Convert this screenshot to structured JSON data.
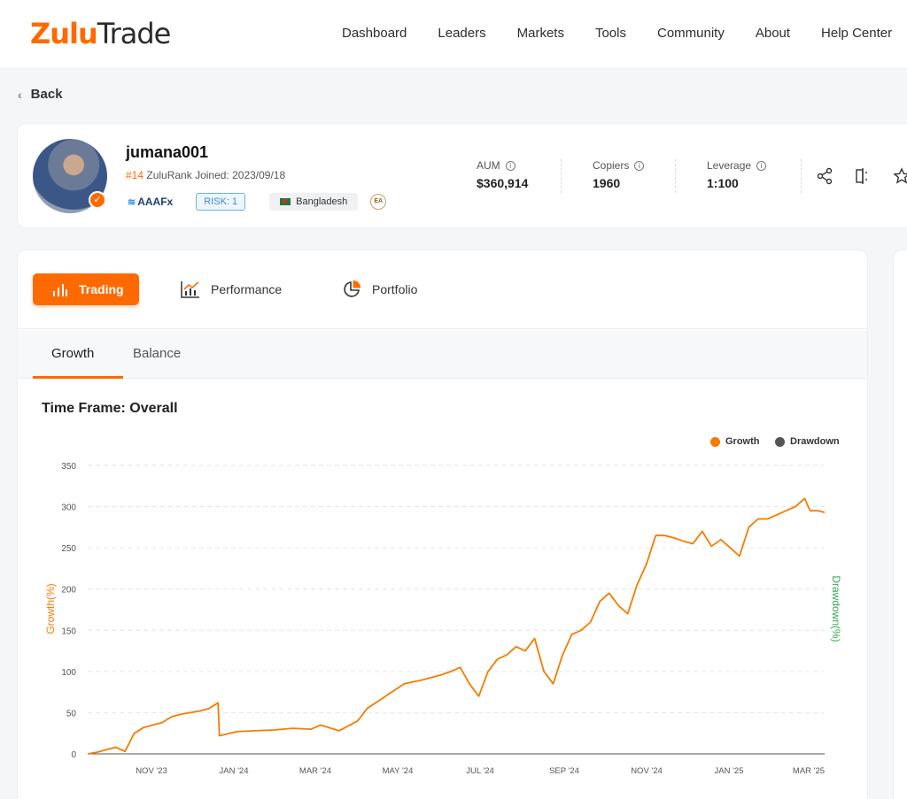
{
  "header": {
    "logo_part1": "Zulu",
    "logo_part2": "Trade",
    "nav": [
      "Dashboard",
      "Leaders",
      "Markets",
      "Tools",
      "Community",
      "About",
      "Help Center"
    ]
  },
  "back_label": "Back",
  "profile": {
    "username": "jumana001",
    "rank": "#14",
    "rank_text": "ZuluRank Joined: 2023/09/18",
    "broker": "AAAFx",
    "risk": "RISK: 1",
    "country": "Bangladesh",
    "ea_badge": "EA",
    "stats": [
      {
        "label": "AUM",
        "value": "$360,914"
      },
      {
        "label": "Copiers",
        "value": "1960"
      },
      {
        "label": "Leverage",
        "value": "1:100"
      }
    ],
    "actions": [
      "share-icon",
      "compare-icon",
      "star-icon"
    ]
  },
  "tabs": [
    {
      "label": "Trading",
      "icon": "bar-chart-icon",
      "active": true
    },
    {
      "label": "Performance",
      "icon": "line-chart-icon",
      "active": false
    },
    {
      "label": "Portfolio",
      "icon": "pie-chart-icon",
      "active": false
    }
  ],
  "subtabs": [
    {
      "label": "Growth",
      "active": true
    },
    {
      "label": "Balance",
      "active": false
    }
  ],
  "timeframe_label": "Time Frame: Overall",
  "colors": {
    "accent": "#ff6a00",
    "growth": "#f57c00",
    "drawdown": "#555555",
    "drawdown_axis": "#3aa856"
  },
  "chart_data": {
    "type": "line",
    "xlabel": "",
    "ylabel": "Growth(%)",
    "y2label": "Drawdown(%)",
    "ylim": [
      0,
      350
    ],
    "yticks": [
      0,
      50,
      100,
      150,
      200,
      250,
      300,
      350
    ],
    "xticks": [
      "NOV '23",
      "JAN '24",
      "MAR '24",
      "MAY '24",
      "JUL '24",
      "SEP '24",
      "NOV '24",
      "JAN '25",
      "MAR '25"
    ],
    "xrange": [
      "2023-09-18",
      "2025-03-25"
    ],
    "grid": true,
    "legend_position": "top-right",
    "series": [
      {
        "name": "Growth",
        "color": "#f57c00",
        "x": [
          "2023-09-18",
          "2023-09-25",
          "2023-10-02",
          "2023-10-09",
          "2023-10-16",
          "2023-10-23",
          "2023-10-30",
          "2023-11-06",
          "2023-11-13",
          "2023-11-20",
          "2023-11-27",
          "2023-12-04",
          "2023-12-11",
          "2023-12-18",
          "2023-12-25",
          "2023-12-26",
          "2024-01-08",
          "2024-01-22",
          "2024-02-05",
          "2024-02-19",
          "2024-03-04",
          "2024-03-11",
          "2024-03-25",
          "2024-04-08",
          "2024-04-15",
          "2024-04-29",
          "2024-05-13",
          "2024-05-27",
          "2024-06-10",
          "2024-06-17",
          "2024-06-24",
          "2024-07-01",
          "2024-07-08",
          "2024-07-15",
          "2024-07-22",
          "2024-07-29",
          "2024-08-05",
          "2024-08-12",
          "2024-08-19",
          "2024-08-26",
          "2024-09-02",
          "2024-09-09",
          "2024-09-16",
          "2024-09-23",
          "2024-09-30",
          "2024-10-07",
          "2024-10-14",
          "2024-10-21",
          "2024-10-28",
          "2024-11-04",
          "2024-11-11",
          "2024-11-18",
          "2024-11-25",
          "2024-12-02",
          "2024-12-09",
          "2024-12-16",
          "2024-12-23",
          "2024-12-30",
          "2025-01-06",
          "2025-01-13",
          "2025-01-20",
          "2025-01-27",
          "2025-02-03",
          "2025-02-10",
          "2025-02-17",
          "2025-02-24",
          "2025-03-03",
          "2025-03-10",
          "2025-03-14",
          "2025-03-20",
          "2025-03-25"
        ],
        "values": [
          0,
          2,
          5,
          8,
          3,
          25,
          32,
          35,
          38,
          45,
          48,
          50,
          52,
          55,
          62,
          22,
          27,
          28,
          29,
          31,
          30,
          35,
          28,
          40,
          55,
          70,
          85,
          90,
          96,
          100,
          105,
          85,
          70,
          100,
          115,
          120,
          130,
          125,
          140,
          100,
          85,
          120,
          145,
          150,
          160,
          185,
          195,
          180,
          170,
          205,
          230,
          265,
          265,
          262,
          258,
          255,
          270,
          252,
          260,
          250,
          240,
          275,
          285,
          285,
          290,
          295,
          300,
          310,
          295,
          295,
          293
        ]
      },
      {
        "name": "Drawdown",
        "color": "#555555",
        "x": [],
        "values": []
      }
    ]
  }
}
